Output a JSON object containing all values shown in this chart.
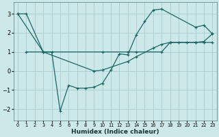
{
  "xlabel": "Humidex (Indice chaleur)",
  "bg_color": "#cce8e8",
  "grid_color": "#aacccc",
  "line_color": "#1a6666",
  "xlim": [
    -0.5,
    23.5
  ],
  "ylim": [
    -2.6,
    3.6
  ],
  "yticks": [
    -2,
    -1,
    0,
    1,
    2,
    3
  ],
  "xticks": [
    0,
    1,
    2,
    3,
    4,
    5,
    6,
    7,
    8,
    9,
    10,
    11,
    12,
    13,
    14,
    15,
    16,
    17,
    18,
    19,
    20,
    21,
    22,
    23
  ],
  "series": [
    {
      "x": [
        0,
        1,
        3,
        4,
        5,
        6,
        7,
        8,
        9,
        10,
        11,
        12,
        13,
        14,
        15,
        16,
        17,
        21,
        22,
        23
      ],
      "y": [
        3.0,
        3.0,
        1.0,
        1.0,
        -2.1,
        -0.75,
        -0.9,
        -0.9,
        -0.85,
        -0.65,
        0.05,
        0.9,
        0.85,
        1.9,
        2.6,
        3.2,
        3.25,
        2.3,
        2.4,
        1.95
      ]
    },
    {
      "x": [
        1,
        3,
        10,
        13,
        14,
        17,
        18,
        19,
        20,
        21,
        22,
        23
      ],
      "y": [
        1.0,
        1.0,
        1.0,
        1.0,
        1.0,
        1.0,
        1.5,
        1.5,
        1.5,
        1.5,
        1.5,
        1.5
      ]
    },
    {
      "x": [
        0,
        3,
        9,
        10,
        13,
        14,
        16,
        17,
        18,
        21,
        22,
        23
      ],
      "y": [
        3.0,
        1.0,
        0.0,
        0.05,
        0.5,
        0.75,
        1.2,
        1.4,
        1.5,
        1.5,
        1.55,
        1.95
      ]
    }
  ]
}
